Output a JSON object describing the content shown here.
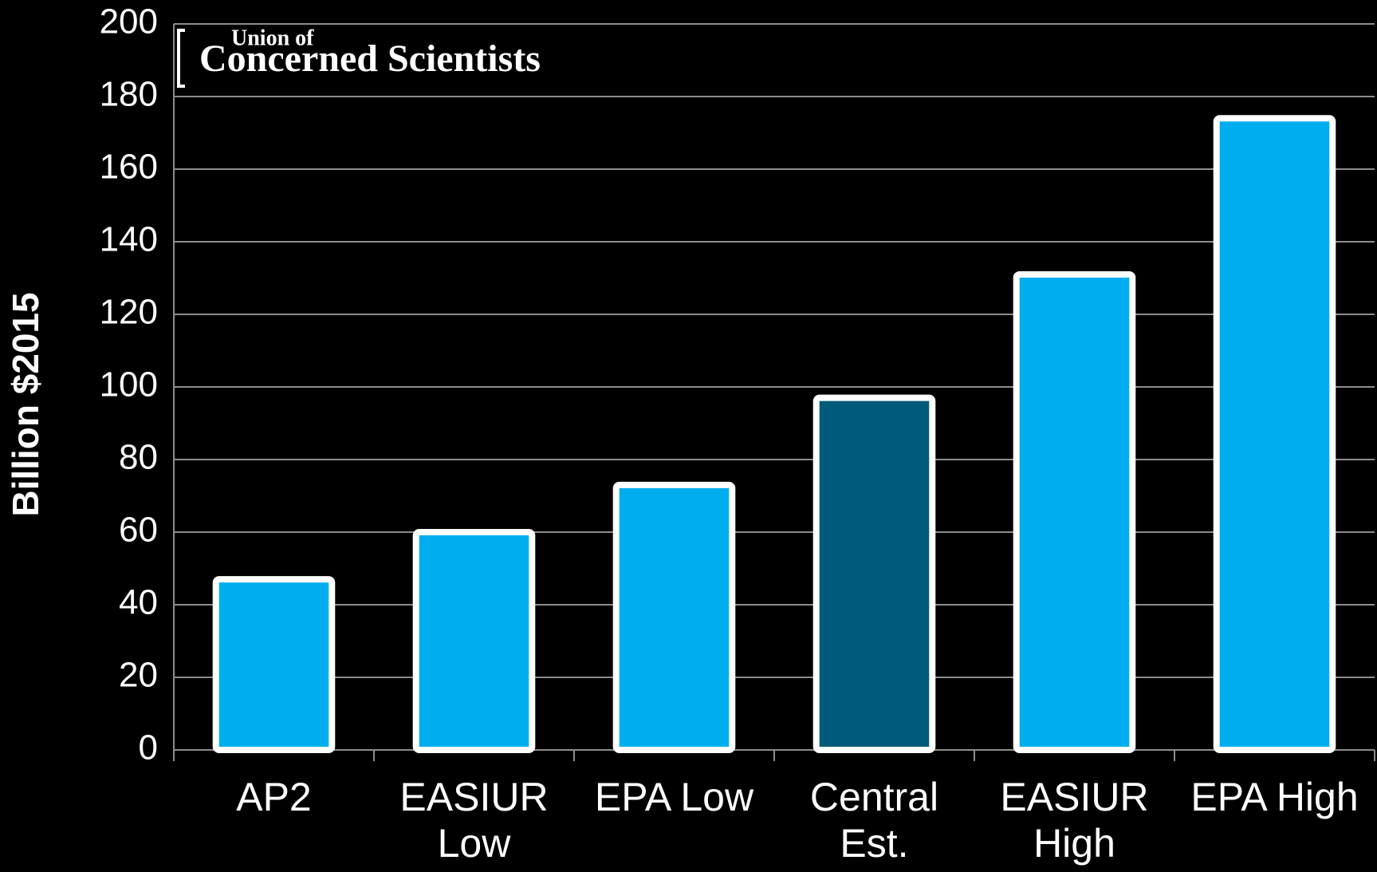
{
  "chart_data": {
    "type": "bar",
    "y_axis_label": "Billion $2015",
    "logo": {
      "line1": "Union of",
      "line2": "Concerned Scientists"
    },
    "categories": [
      "AP2",
      "EASIUR Low",
      "EPA Low",
      "Central Est.",
      "EASIUR High",
      "EPA High"
    ],
    "values": [
      47,
      60,
      73,
      97,
      131,
      174
    ],
    "colors": [
      "#00aeef",
      "#00aeef",
      "#00aeef",
      "#005a7a",
      "#00aeef",
      "#00aeef"
    ],
    "ylim": [
      0,
      200
    ],
    "yticks": [
      0,
      20,
      40,
      60,
      80,
      100,
      120,
      140,
      160,
      180,
      200
    ],
    "grid": true
  }
}
